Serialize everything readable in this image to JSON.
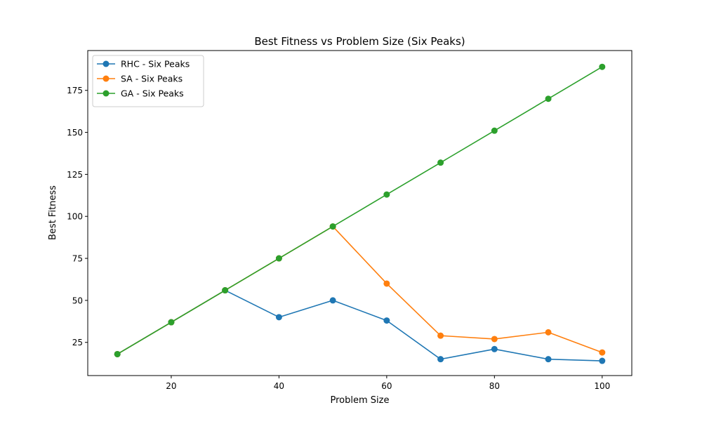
{
  "chart_data": {
    "type": "line",
    "title": "Best Fitness vs Problem Size (Six Peaks)",
    "xlabel": "Problem Size",
    "ylabel": "Best Fitness",
    "x": [
      10,
      20,
      30,
      40,
      50,
      60,
      70,
      80,
      90,
      100
    ],
    "xlim": [
      4.5,
      105.5
    ],
    "ylim": [
      5.25,
      198.7
    ],
    "xticks": [
      20,
      40,
      60,
      80,
      100
    ],
    "yticks": [
      25,
      50,
      75,
      100,
      125,
      150,
      175
    ],
    "grid": false,
    "legend_position": "upper left",
    "series": [
      {
        "name": "RHC - Six Peaks",
        "color": "#1f77b4",
        "values": [
          18,
          37,
          56,
          40,
          50,
          38,
          15,
          21,
          15,
          14
        ]
      },
      {
        "name": "SA - Six Peaks",
        "color": "#ff7f0e",
        "values": [
          18,
          37,
          56,
          75,
          94,
          60,
          29,
          27,
          31,
          19
        ]
      },
      {
        "name": "GA - Six Peaks",
        "color": "#2ca02c",
        "values": [
          18,
          37,
          56,
          75,
          94,
          113,
          132,
          151,
          170,
          189
        ]
      }
    ]
  }
}
